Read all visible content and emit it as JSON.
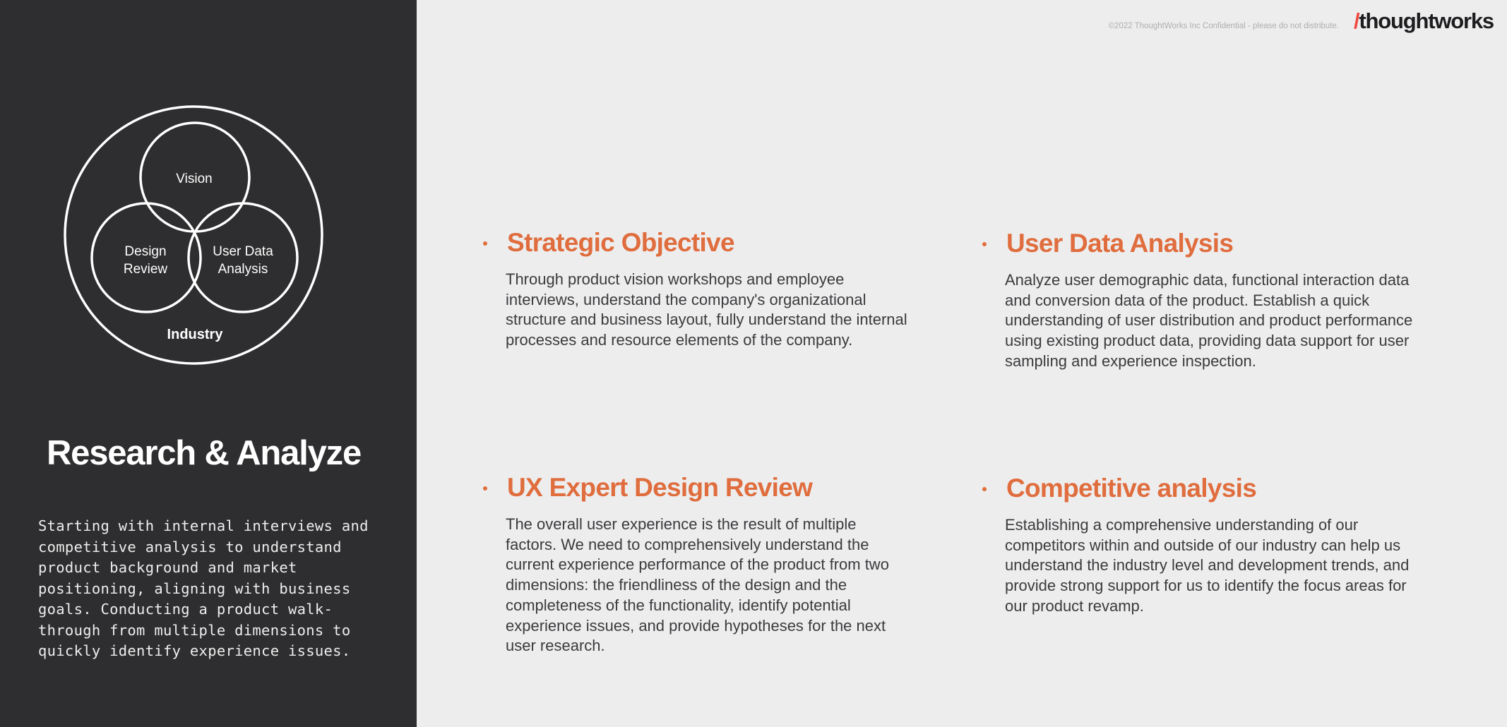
{
  "header": {
    "copyright": "©2022 ThoughtWorks Inc  Confidential - please do not distribute.",
    "logo_slash": "/",
    "logo_text": "thoughtworks"
  },
  "left": {
    "diagram": {
      "vision": "Vision",
      "design_review_line1": "Design",
      "design_review_line2": "Review",
      "user_data_line1": "User Data",
      "user_data_line2": "Analysis",
      "industry": "Industry"
    },
    "title": "Research & Analyze",
    "description": "Starting with internal interviews and competitive analysis to understand product background and market positioning, aligning with business goals. Conducting a product walk-through from multiple dimensions to quickly identify experience issues."
  },
  "sections": [
    {
      "title": "Strategic Objective",
      "body": "Through product vision workshops and employee interviews, understand the company's organizational structure and business layout, fully understand the internal processes and resource elements of the company."
    },
    {
      "title": "User Data Analysis",
      "body": "Analyze user demographic data, functional interaction data and conversion data of the product. Establish a quick understanding of user distribution and product performance using existing product data, providing data support for user sampling and experience inspection."
    },
    {
      "title": "UX Expert Design Review",
      "body": "The overall user experience is the result of multiple factors. We need to comprehensively understand the current experience performance of the product from two dimensions: the friendliness of the design and the completeness of the functionality, identify potential experience issues, and provide hypotheses for the next user research."
    },
    {
      "title": "Competitive analysis",
      "body": "Establishing a comprehensive understanding of our competitors within and outside of our industry can help us understand the industry level and development trends, and provide strong support for us to identify the focus areas for our product revamp."
    }
  ],
  "colors": {
    "left_panel": "#2e2d2f",
    "background": "#ededee",
    "accent_orange": "#e06d3d",
    "logo_slash": "#f0483f"
  }
}
